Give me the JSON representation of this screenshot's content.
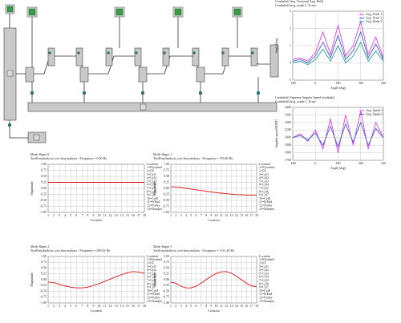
{
  "chart_data": [
    {
      "type": "line",
      "title": "Crankshaft Avg. Torsional Ang. Defls",
      "subtitle": "Crankshaft1avg_crank-1_Ecase",
      "x_label": "Angle [deg]",
      "y_label": "Angle [deg]",
      "x": [
        -180,
        -120,
        -60,
        0,
        60,
        120,
        180,
        240,
        300,
        360,
        420,
        480,
        540
      ],
      "series": [
        {
          "name": "Avg. Node 1",
          "color": "#e040e0",
          "values": [
            0.2,
            0.3,
            0.1,
            0.6,
            1.8,
            0.5,
            2.2,
            0.4,
            1.0,
            2.4,
            0.5,
            1.5,
            0.3
          ]
        },
        {
          "name": "Avg. Node 2",
          "color": "#4060d0",
          "values": [
            0.1,
            0.2,
            0.0,
            0.4,
            1.2,
            0.3,
            1.6,
            0.2,
            0.7,
            1.8,
            0.3,
            1.1,
            0.2
          ]
        },
        {
          "name": "Avg. Node 3",
          "color": "#20a0a0",
          "values": [
            0.0,
            0.1,
            -0.1,
            0.2,
            0.8,
            0.1,
            1.0,
            0.0,
            0.4,
            1.2,
            0.1,
            0.7,
            0.1
          ]
        }
      ],
      "xlim": [
        -180,
        540
      ],
      "xticks": [
        -180,
        0,
        180,
        360,
        540
      ],
      "ylim": [
        -1,
        3
      ],
      "yticks": [
        -1,
        0,
        1,
        2,
        3
      ],
      "grid": true,
      "legend": "upper right"
    },
    {
      "type": "line",
      "title": "Crankshaft Segment Angular Speed (multiple)",
      "subtitle": "Crankshaft1avg_crank-1_Ecase",
      "x_label": "Angle [deg]",
      "y_label": "Angular speed [RPM]",
      "x": [
        -180,
        -120,
        -60,
        0,
        60,
        120,
        180,
        240,
        300,
        360,
        420,
        480,
        540
      ],
      "series": [
        {
          "name": "Avg. Speed 1",
          "color": "#e040e0",
          "values": [
            2000,
            2050,
            1950,
            2100,
            1850,
            2250,
            1800,
            2300,
            1900,
            2350,
            1850,
            2200,
            2000
          ]
        },
        {
          "name": "Avg. Speed 2",
          "color": "#4060d0",
          "values": [
            2000,
            2030,
            1970,
            2060,
            1900,
            2150,
            1880,
            2180,
            1940,
            2200,
            1900,
            2120,
            2000
          ]
        }
      ],
      "xlim": [
        -180,
        540
      ],
      "xticks": [
        -180,
        0,
        180,
        360,
        540
      ],
      "ylim": [
        1700,
        2400
      ],
      "yticks": [
        1700,
        1800,
        1900,
        2000,
        2100,
        2200,
        2300,
        2400
      ],
      "grid": true,
      "legend": "upper right"
    },
    {
      "type": "line",
      "title": "Mode Shape 0",
      "subtitle": "TorsFreqAnalysis_tors-freq analysis - Frequency = 0.00 Hz",
      "x_label": "Location",
      "y_label": "Magnitude",
      "x": [
        1,
        2,
        3,
        4,
        5,
        6,
        7,
        8,
        9,
        10,
        11,
        12,
        13,
        14,
        15,
        16,
        17,
        18
      ],
      "series": [
        {
          "color": "#dd1111",
          "values": [
            0.25,
            0.25,
            0.25,
            0.25,
            0.25,
            0.25,
            0.25,
            0.25,
            0.25,
            0.25,
            0.25,
            0.25,
            0.25,
            0.25,
            0.25,
            0.25,
            0.25,
            0.25
          ]
        }
      ],
      "xlim": [
        1,
        18
      ],
      "xticks": [
        1,
        2,
        3,
        4,
        5,
        6,
        7,
        8,
        9,
        10,
        11,
        12,
        13,
        14,
        15,
        16,
        17,
        18
      ],
      "ylim": [
        -1,
        1
      ],
      "yticks": [
        {
          "value": 1,
          "label": "1.00"
        },
        {
          "value": 0.75,
          "label": "0.75"
        },
        {
          "value": 0.5,
          "label": "0.50"
        },
        {
          "value": 0.25,
          "label": "0.25"
        },
        {
          "value": 0,
          "label": "0.00"
        },
        {
          "value": -0.25,
          "label": "-0.25"
        },
        {
          "value": -0.5,
          "label": "-0.50"
        },
        {
          "value": -0.75,
          "label": "-0.75"
        },
        {
          "value": -1,
          "label": "-1.00"
        }
      ],
      "grid": true,
      "legend": "right",
      "legend_title": "Location",
      "legend_items": [
        "1=Flywheel",
        "2=FE",
        "3=Cyl1",
        "4=Cyl2",
        "5=Cyl3",
        "6=Cyl4",
        "7=Cyl5",
        "8=Cyl6",
        "9=Cyl7",
        "10=Cyl8",
        "11=FrEnd",
        "12=Pulley",
        "13=Damper"
      ]
    },
    {
      "type": "line",
      "title": "Mode Shape 1",
      "subtitle": "TorsFreqAnalysis_tors-freq analysis - Frequency = 176.60 Hz",
      "x_label": "Location",
      "y_label": "Magnitude",
      "x": [
        1,
        2,
        3,
        4,
        5,
        6,
        7,
        8,
        9,
        10,
        11,
        12,
        13,
        14,
        15,
        16,
        17,
        18
      ],
      "series": [
        {
          "color": "#dd1111",
          "values": [
            0.07,
            0.06,
            0.04,
            0.0,
            -0.03,
            -0.06,
            -0.09,
            -0.12,
            -0.15,
            -0.18,
            -0.2,
            -0.22,
            -0.24,
            -0.26,
            -0.27,
            -0.28,
            -0.28,
            -0.28
          ]
        }
      ],
      "xlim": [
        1,
        18
      ],
      "xticks": [
        1,
        2,
        3,
        4,
        5,
        6,
        7,
        8,
        9,
        10,
        11,
        12,
        13,
        14,
        15,
        16,
        17,
        18
      ],
      "ylim": [
        -1,
        1
      ],
      "yticks": [
        {
          "value": 1,
          "label": "1.00"
        },
        {
          "value": 0.75,
          "label": "0.75"
        },
        {
          "value": 0.5,
          "label": "0.50"
        },
        {
          "value": 0.25,
          "label": "0.25"
        },
        {
          "value": 0,
          "label": "0.00"
        },
        {
          "value": -0.25,
          "label": "-0.25"
        },
        {
          "value": -0.5,
          "label": "-0.50"
        },
        {
          "value": -0.75,
          "label": "-0.75"
        },
        {
          "value": -1,
          "label": "-1.00"
        }
      ],
      "grid": true,
      "legend": "right",
      "legend_title": "Location",
      "legend_items": [
        "1=Flywheel",
        "2=FE",
        "3=Cyl1",
        "4=Cyl2",
        "5=Cyl3",
        "6=Cyl4",
        "7=Cyl5",
        "8=Cyl6",
        "9=Cyl7",
        "10=Cyl8",
        "11=FrEnd",
        "12=Pulley",
        "13=Damper"
      ]
    },
    {
      "type": "line",
      "title": "Mode Shape 2",
      "subtitle": "TorsFreqAnalysis_tors-freq analysis - Frequency = 499.02 Hz",
      "x_label": "Location",
      "y_label": "Magnitude",
      "x": [
        1,
        2,
        3,
        4,
        5,
        6,
        7,
        8,
        9,
        10,
        11,
        12,
        13,
        14,
        15,
        16,
        17,
        18
      ],
      "series": [
        {
          "color": "#dd1111",
          "values": [
            -0.1,
            -0.12,
            -0.2,
            -0.27,
            -0.32,
            -0.35,
            -0.35,
            -0.32,
            -0.25,
            -0.17,
            -0.07,
            0.03,
            0.13,
            0.22,
            0.3,
            0.35,
            0.33,
            0.28
          ]
        }
      ],
      "xlim": [
        1,
        18
      ],
      "xticks": [
        1,
        2,
        3,
        4,
        5,
        6,
        7,
        8,
        9,
        10,
        11,
        12,
        13,
        14,
        15,
        16,
        17,
        18
      ],
      "ylim": [
        -1,
        1
      ],
      "yticks": [
        {
          "value": 1,
          "label": "1.00"
        },
        {
          "value": 0.75,
          "label": "0.75"
        },
        {
          "value": 0.5,
          "label": "0.50"
        },
        {
          "value": 0.25,
          "label": "0.25"
        },
        {
          "value": 0,
          "label": "0.00"
        },
        {
          "value": -0.25,
          "label": "-0.25"
        },
        {
          "value": -0.5,
          "label": "-0.50"
        },
        {
          "value": -0.75,
          "label": "-0.75"
        },
        {
          "value": -1,
          "label": "-1.00"
        }
      ],
      "grid": true,
      "legend": "right",
      "legend_title": "Location",
      "legend_items": [
        "1=Flywheel",
        "2=FE",
        "3=Cyl1",
        "4=Cyl2",
        "5=Cyl3",
        "6=Cyl4",
        "7=Cyl5",
        "8=Cyl6",
        "9=Cyl7",
        "10=Cyl8",
        "11=FrEnd",
        "12=Pulley",
        "13=Damper"
      ]
    },
    {
      "type": "line",
      "title": "Mode Shape 3",
      "subtitle": "TorsFreqAnalysis_tors-freq analysis - Frequency = 1312.46 Hz",
      "x_label": "Location",
      "y_label": "Magnitude",
      "x": [
        1,
        2,
        3,
        4,
        5,
        6,
        7,
        8,
        9,
        10,
        11,
        12,
        13,
        14,
        15,
        16,
        17,
        18
      ],
      "series": [
        {
          "color": "#dd1111",
          "values": [
            -0.1,
            -0.15,
            -0.28,
            -0.35,
            -0.35,
            -0.28,
            -0.15,
            0.0,
            0.15,
            0.27,
            0.34,
            0.35,
            0.28,
            0.15,
            0.0,
            -0.15,
            -0.27,
            -0.3
          ]
        }
      ],
      "xlim": [
        1,
        18
      ],
      "xticks": [
        1,
        2,
        3,
        4,
        5,
        6,
        7,
        8,
        9,
        10,
        11,
        12,
        13,
        14,
        15,
        16,
        17,
        18
      ],
      "ylim": [
        -1,
        1
      ],
      "yticks": [
        {
          "value": 1,
          "label": "1.00"
        },
        {
          "value": 0.75,
          "label": "0.75"
        },
        {
          "value": 0.5,
          "label": "0.50"
        },
        {
          "value": 0.25,
          "label": "0.25"
        },
        {
          "value": 0,
          "label": "0.00"
        },
        {
          "value": -0.25,
          "label": "-0.25"
        },
        {
          "value": -0.5,
          "label": "-0.50"
        },
        {
          "value": -0.75,
          "label": "-0.75"
        },
        {
          "value": -1,
          "label": "-1.00"
        }
      ],
      "grid": true,
      "legend": "right",
      "legend_title": "Location",
      "legend_items": [
        "1=Flywheel",
        "2=FE",
        "3=Cyl1",
        "4=Cyl2",
        "5=Cyl3",
        "6=Cyl4",
        "7=Cyl5",
        "8=Cyl6",
        "9=Cyl7",
        "10=Cyl8",
        "11=FrEnd",
        "12=Pulley",
        "13=Damper"
      ]
    }
  ]
}
